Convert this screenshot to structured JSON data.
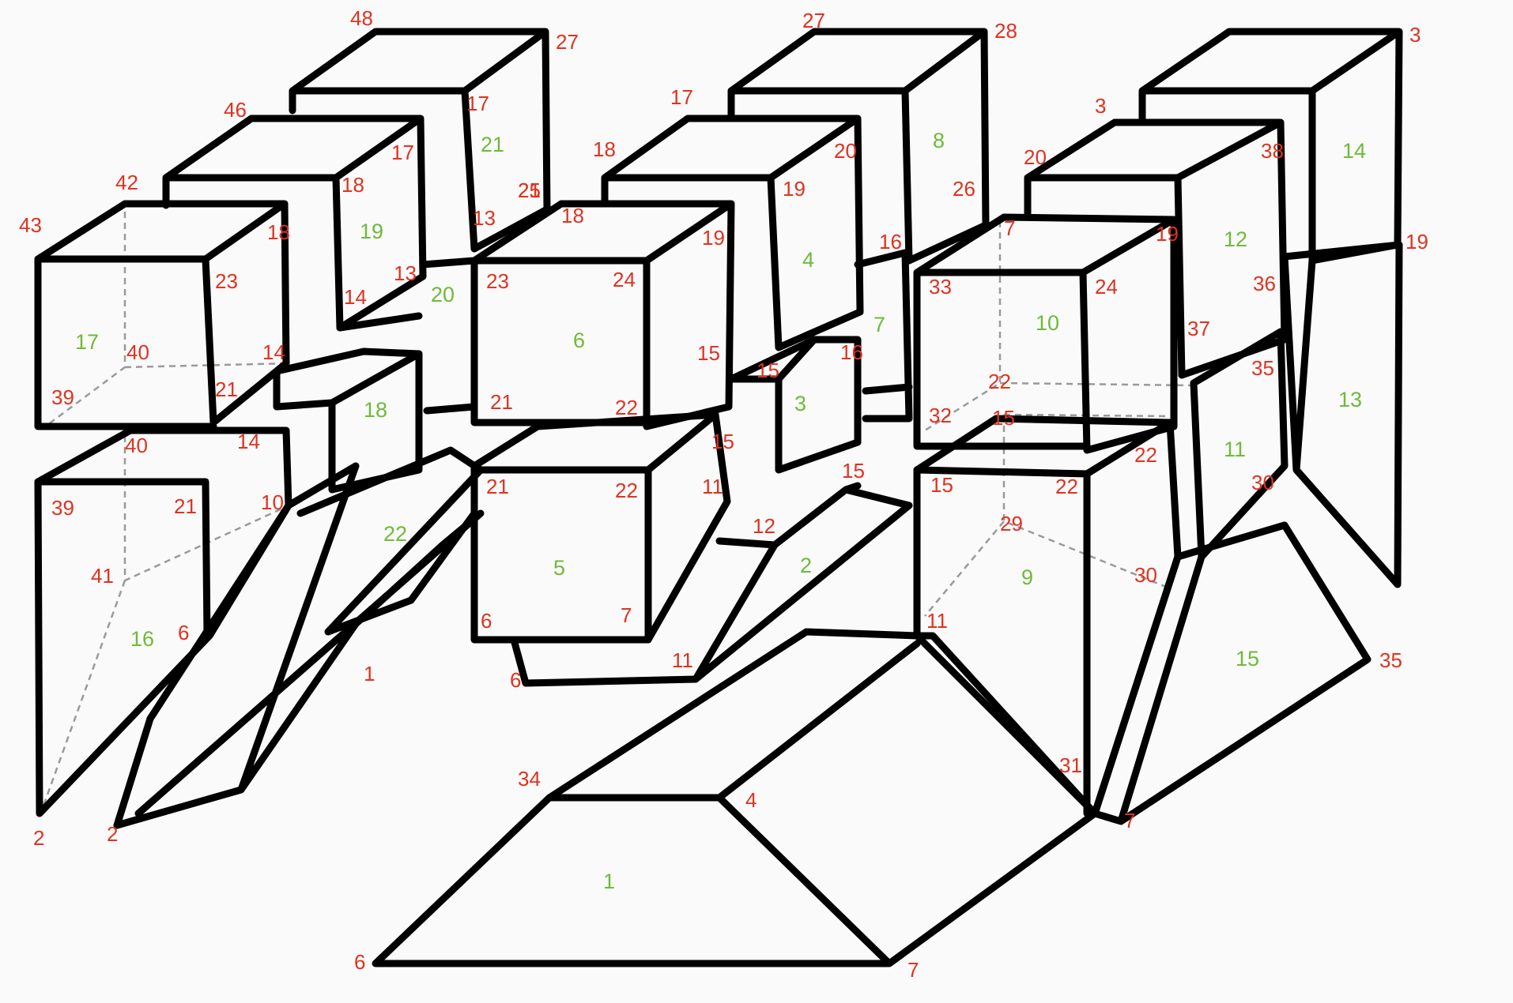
{
  "colors": {
    "background": "#fafafa",
    "edge": "#000000",
    "hidden_edge": "#9a9a9a",
    "vertex_label": "#e03220",
    "face_label": "#6fba3a"
  },
  "vertex_labels": [
    "48",
    "27",
    "17",
    "21",
    "25",
    "46",
    "17",
    "18",
    "19",
    "42",
    "43",
    "18",
    "23",
    "13",
    "13",
    "14",
    "40",
    "14",
    "39",
    "21",
    "40",
    "39",
    "21",
    "14",
    "10",
    "41",
    "6",
    "2",
    "2",
    "1",
    "18",
    "23",
    "24",
    "19",
    "15",
    "21",
    "22",
    "15",
    "21",
    "22",
    "11",
    "6",
    "7",
    "6",
    "27",
    "28",
    "17",
    "18",
    "20",
    "19",
    "26",
    "16",
    "16",
    "15",
    "15",
    "12",
    "11",
    "7",
    "19",
    "33",
    "24",
    "32",
    "22",
    "15",
    "15",
    "22",
    "22",
    "29",
    "30",
    "11",
    "31",
    "7",
    "3",
    "3",
    "20",
    "38",
    "19",
    "36",
    "37",
    "35",
    "30",
    "35",
    "34",
    "4",
    "6",
    "7",
    "2",
    "3"
  ],
  "face_labels": [
    "21",
    "19",
    "17",
    "20",
    "18",
    "22",
    "16",
    "6",
    "5",
    "8",
    "4",
    "7",
    "3",
    "2",
    "10",
    "12",
    "14",
    "13",
    "11",
    "9",
    "15",
    "1"
  ]
}
